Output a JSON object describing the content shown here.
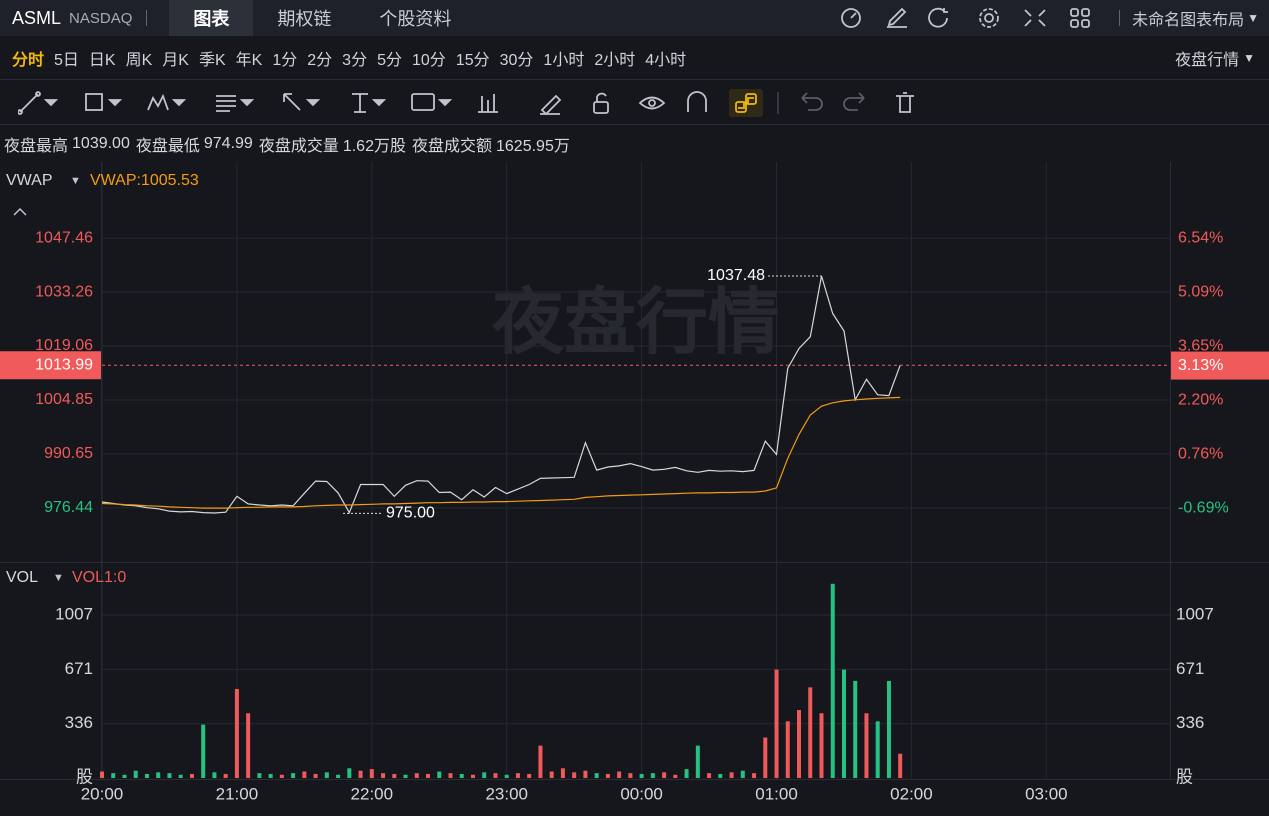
{
  "header": {
    "symbol": "ASML",
    "exchange": "NASDAQ",
    "tabs": [
      "图表",
      "期权链",
      "个股资料"
    ],
    "layout_name": "未命名图表布局"
  },
  "periods": {
    "items": [
      "分时",
      "5日",
      "日K",
      "周K",
      "月K",
      "季K",
      "年K",
      "1分",
      "2分",
      "3分",
      "5分",
      "10分",
      "15分",
      "30分",
      "1小时",
      "2小时",
      "4小时"
    ],
    "session_label": "夜盘行情"
  },
  "stats": [
    {
      "label": "夜盘最高",
      "value": "1039.00"
    },
    {
      "label": "夜盘最低",
      "value": "974.99"
    },
    {
      "label": "夜盘成交量",
      "value": "1.62万股"
    },
    {
      "label": "夜盘成交额",
      "value": "1625.95万"
    }
  ],
  "watermark": "夜盘行情",
  "chart_data": [
    {
      "type": "line",
      "categories": [
        "20:00",
        "20:05",
        "20:10",
        "20:15",
        "20:20",
        "20:25",
        "20:30",
        "20:35",
        "20:40",
        "20:45",
        "20:50",
        "20:55",
        "21:00",
        "21:05",
        "21:10",
        "21:15",
        "21:20",
        "21:25",
        "21:30",
        "21:35",
        "21:40",
        "21:45",
        "21:50",
        "21:55",
        "22:00",
        "22:05",
        "22:10",
        "22:15",
        "22:20",
        "22:25",
        "22:30",
        "22:35",
        "22:40",
        "22:45",
        "22:50",
        "22:55",
        "23:00",
        "23:05",
        "23:10",
        "23:15",
        "23:20",
        "23:25",
        "23:30",
        "23:35",
        "23:40",
        "23:45",
        "23:50",
        "23:55",
        "00:00",
        "00:05",
        "00:10",
        "00:15",
        "00:20",
        "00:25",
        "00:30",
        "00:35",
        "00:40",
        "00:45",
        "00:50",
        "00:55",
        "01:00",
        "01:05",
        "01:10",
        "01:15",
        "01:20",
        "01:25",
        "01:30",
        "01:35",
        "01:40",
        "01:45",
        "01:50",
        "01:55"
      ],
      "series": [
        {
          "color": "#d8d8d8",
          "values": [
            978,
            977.6,
            977.2,
            977,
            976.5,
            976.2,
            975.6,
            975.4,
            975.5,
            975.2,
            975.1,
            975.3,
            979.5,
            977.5,
            977.2,
            977,
            977.2,
            977,
            980.3,
            983.5,
            983.4,
            980.4,
            975.2,
            982.6,
            982.6,
            982.6,
            979.5,
            982.4,
            983.6,
            983.5,
            980.5,
            980.6,
            978.6,
            981.2,
            979.3,
            981.8,
            980.2,
            981.4,
            982.6,
            984.2,
            984.3,
            984.4,
            984.5,
            993.6,
            986.4,
            987.2,
            987.5,
            988.1,
            987.3,
            986.4,
            986.6,
            987.1,
            986.2,
            985.8,
            986.3,
            986.1,
            986.2,
            986,
            986.3,
            994,
            990.5,
            1013.2,
            1018.4,
            1021.5,
            1037.48,
            1027.6,
            1023,
            1004.9,
            1010.3,
            1006.2,
            1006,
            1013.99
          ]
        },
        {
          "name": "VWAP",
          "value_label": "VWAP:1005.53",
          "color": "#f39c12",
          "values": [
            977.6,
            977.5,
            977.3,
            977.2,
            977,
            976.9,
            976.7,
            976.6,
            976.5,
            976.4,
            976.4,
            976.4,
            976.5,
            976.6,
            976.6,
            976.7,
            976.7,
            976.7,
            976.8,
            977,
            977.1,
            977.2,
            977.2,
            977.3,
            977.4,
            977.5,
            977.5,
            977.6,
            977.7,
            977.8,
            977.8,
            977.9,
            977.9,
            978,
            978,
            978.1,
            978.1,
            978.2,
            978.3,
            978.4,
            978.5,
            978.6,
            978.7,
            979.2,
            979.4,
            979.6,
            979.7,
            979.8,
            979.9,
            980,
            980.1,
            980.2,
            980.3,
            980.4,
            980.4,
            980.5,
            980.5,
            980.6,
            980.6,
            980.9,
            981.7,
            989.5,
            995.8,
            1000.9,
            1003.2,
            1004.1,
            1004.6,
            1004.9,
            1005.1,
            1005.3,
            1005.4,
            1005.53
          ]
        }
      ],
      "xlim": [
        "20:00",
        "03:55"
      ],
      "xticks": [
        "20:00",
        "21:00",
        "22:00",
        "23:00",
        "00:00",
        "01:00",
        "02:00",
        "03:00"
      ],
      "ylim": [
        962.2,
        1066.7
      ],
      "yticks": [
        1047.46,
        1033.26,
        1019.06,
        1004.85,
        990.65,
        976.44
      ],
      "y2lim": [
        -2.13,
        8.5
      ],
      "y2ticks": [
        {
          "value": 6.54,
          "label": "6.54%"
        },
        {
          "value": 5.09,
          "label": "5.09%"
        },
        {
          "value": 3.65,
          "label": "3.65%"
        },
        {
          "value": 2.2,
          "label": "2.20%"
        },
        {
          "value": 0.76,
          "label": "0.76%"
        },
        {
          "value": -0.69,
          "label": "-0.69%"
        }
      ],
      "last_price": 1013.99,
      "last_pct": {
        "value": 3.13,
        "label": "3.13%"
      },
      "high": {
        "value": 1037.48,
        "label": "1037.48"
      },
      "low": {
        "value": 975,
        "label": "975.00"
      },
      "up_color": "#f05a5a",
      "down_color": "#26c281",
      "grid": true
    },
    {
      "type": "bar",
      "name": "VOL",
      "indicator_label": "VOL1:0",
      "values": [
        40,
        30,
        20,
        45,
        25,
        35,
        30,
        20,
        25,
        330,
        35,
        25,
        550,
        400,
        30,
        25,
        20,
        30,
        40,
        25,
        35,
        20,
        60,
        45,
        55,
        30,
        25,
        20,
        30,
        25,
        40,
        30,
        25,
        20,
        35,
        30,
        20,
        30,
        25,
        200,
        40,
        60,
        35,
        45,
        30,
        25,
        40,
        30,
        25,
        30,
        35,
        20,
        55,
        200,
        30,
        25,
        35,
        45,
        30,
        250,
        670,
        350,
        420,
        560,
        400,
        1200,
        670,
        600,
        400,
        350,
        600,
        150
      ],
      "colors": [
        "#f05a5a",
        "#26c281",
        "#26c281",
        "#26c281",
        "#26c281",
        "#26c281",
        "#26c281",
        "#26c281",
        "#f05a5a",
        "#26c281",
        "#26c281",
        "#f05a5a",
        "#f05a5a",
        "#f05a5a",
        "#26c281",
        "#26c281",
        "#f05a5a",
        "#26c281",
        "#f05a5a",
        "#f05a5a",
        "#26c281",
        "#26c281",
        "#26c281",
        "#f05a5a",
        "#f05a5a",
        "#f05a5a",
        "#f05a5a",
        "#26c281",
        "#f05a5a",
        "#f05a5a",
        "#26c281",
        "#f05a5a",
        "#26c281",
        "#f05a5a",
        "#26c281",
        "#f05a5a",
        "#26c281",
        "#f05a5a",
        "#f05a5a",
        "#f05a5a",
        "#f05a5a",
        "#f05a5a",
        "#f05a5a",
        "#f05a5a",
        "#26c281",
        "#f05a5a",
        "#f05a5a",
        "#f05a5a",
        "#26c281",
        "#26c281",
        "#f05a5a",
        "#f05a5a",
        "#26c281",
        "#26c281",
        "#f05a5a",
        "#26c281",
        "#f05a5a",
        "#26c281",
        "#f05a5a",
        "#f05a5a",
        "#f05a5a",
        "#f05a5a",
        "#f05a5a",
        "#f05a5a",
        "#f05a5a",
        "#26c281",
        "#26c281",
        "#26c281",
        "#f05a5a",
        "#26c281",
        "#26c281",
        "#f05a5a"
      ],
      "ylim": [
        0,
        1316
      ],
      "yticks": [
        1007,
        671,
        336,
        {
          "value": 0,
          "label": "股"
        }
      ]
    }
  ]
}
